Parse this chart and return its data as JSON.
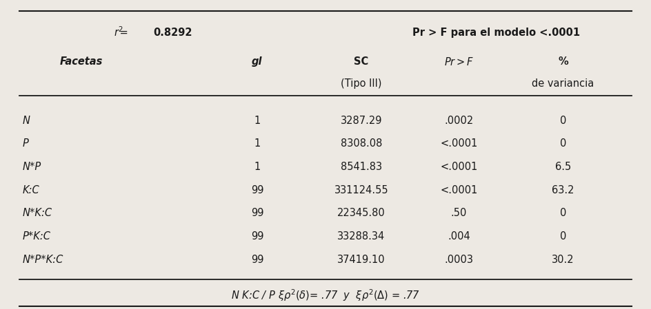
{
  "bg_color": "#ede9e3",
  "text_color": "#1a1a1a",
  "line_color": "#1a1a1a",
  "fs": 10.5,
  "rows": [
    {
      "faceta": "N",
      "gl": "1",
      "sc": "3287.29",
      "pr": ".0002",
      "pct": "0"
    },
    {
      "faceta": "P",
      "gl": "1",
      "sc": "8308.08",
      "pr": "<.0001",
      "pct": "0"
    },
    {
      "faceta": "N*P",
      "gl": "1",
      "sc": "8541.83",
      "pr": "<.0001",
      "pct": "6.5"
    },
    {
      "faceta": "K:C",
      "gl": "99",
      "sc": "331124.55",
      "pr": "<.0001",
      "pct": "63.2"
    },
    {
      "faceta": "N*K:C",
      "gl": "99",
      "sc": "22345.80",
      "pr": ".50",
      "pct": "0"
    },
    {
      "faceta": "P*K:C",
      "gl": "99",
      "sc": "33288.34",
      "pr": ".004",
      "pct": "0"
    },
    {
      "faceta": "N*P*K:C",
      "gl": "99",
      "sc": "37419.10",
      "pr": ".0003",
      "pct": "30.2"
    }
  ]
}
